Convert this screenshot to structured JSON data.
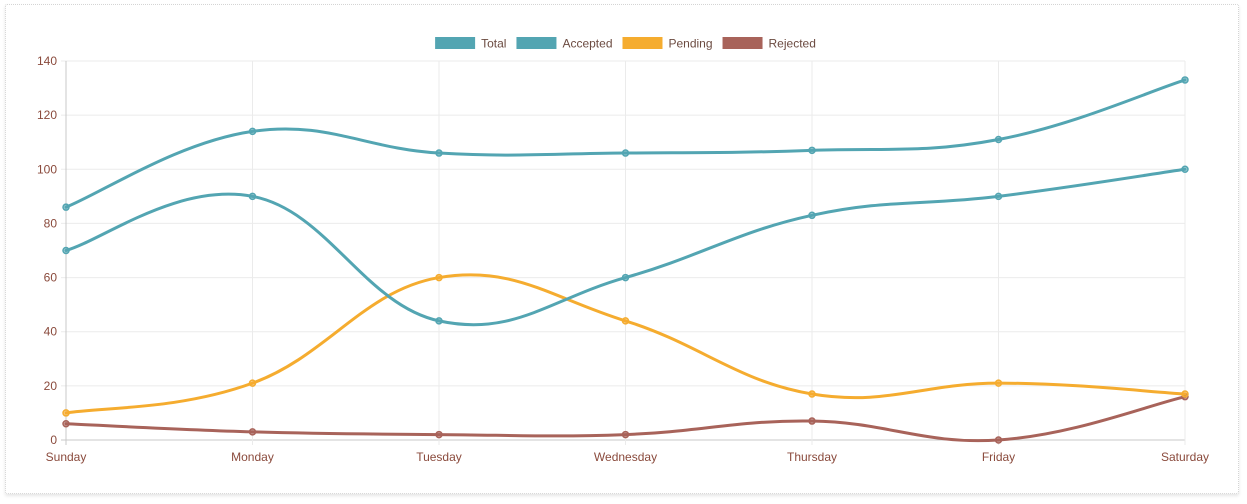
{
  "chart_data": {
    "type": "line",
    "categories": [
      "Sunday",
      "Monday",
      "Tuesday",
      "Wednesday",
      "Thursday",
      "Friday",
      "Saturday"
    ],
    "series": [
      {
        "name": "Total",
        "color": "#53a5b2",
        "values": [
          86,
          114,
          106,
          106,
          107,
          111,
          133
        ]
      },
      {
        "name": "Accepted",
        "color": "#53a5b2",
        "values": [
          70,
          90,
          44,
          60,
          83,
          90,
          100
        ]
      },
      {
        "name": "Pending",
        "color": "#f5ac2f",
        "values": [
          10,
          21,
          60,
          44,
          17,
          21,
          17
        ]
      },
      {
        "name": "Rejected",
        "color": "#a8635a",
        "values": [
          6,
          3,
          2,
          2,
          7,
          0,
          16
        ]
      }
    ],
    "yticks": [
      0,
      20,
      40,
      60,
      80,
      100,
      120,
      140
    ],
    "ylim": [
      0,
      140
    ],
    "title": "",
    "xlabel": "",
    "ylabel": "",
    "grid": true,
    "legend_position": "top-center",
    "curve": "smooth"
  }
}
